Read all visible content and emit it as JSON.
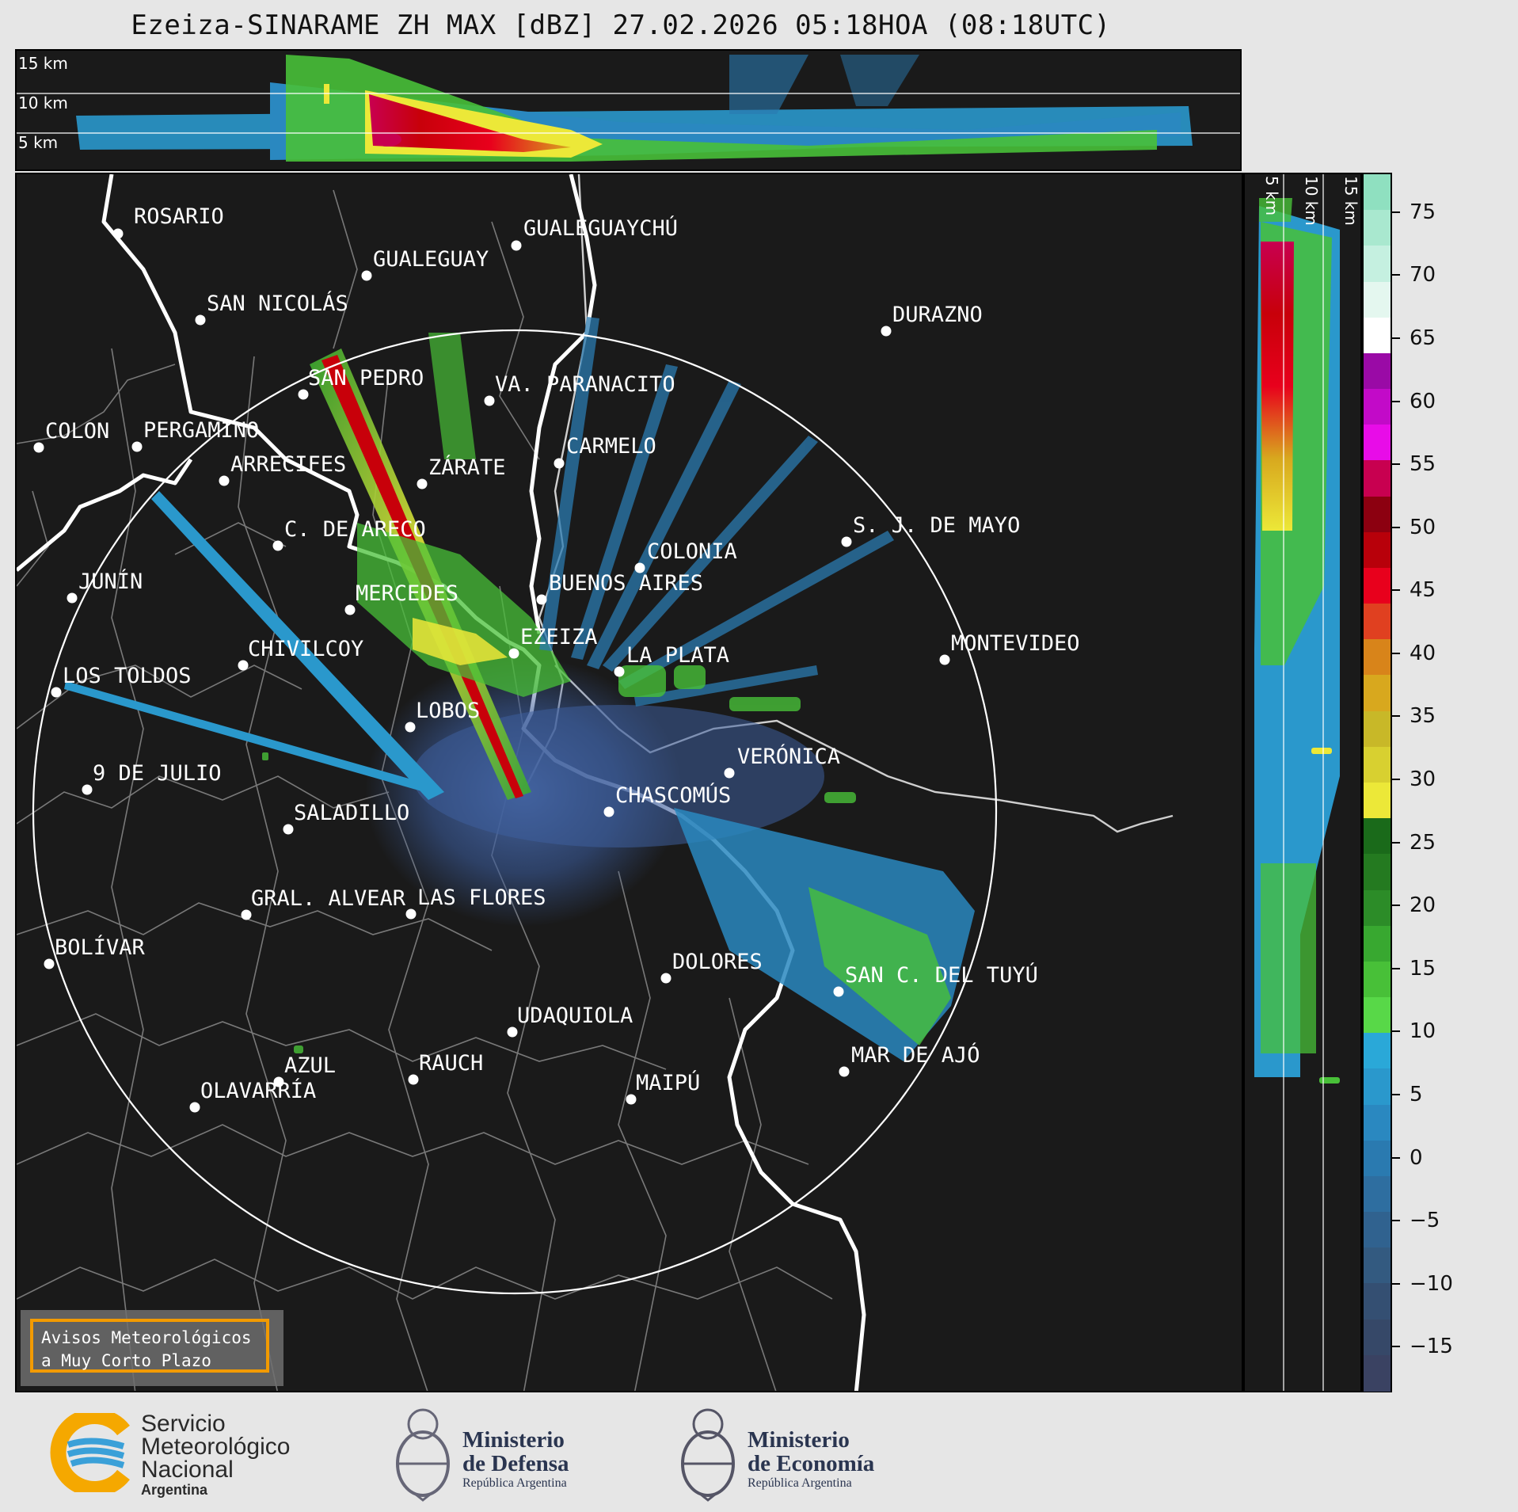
{
  "title": "Ezeiza-SINARAME ZH MAX [dBZ] 27.02.2026 05:18HOA (08:18UTC)",
  "top_profile": {
    "height_labels": [
      "15 km",
      "10 km",
      "5 km"
    ]
  },
  "side_profile": {
    "height_labels": [
      "5 km",
      "10 km",
      "15 km"
    ]
  },
  "colorbar": {
    "unit": "dBZ",
    "ticks": [
      "75",
      "70",
      "65",
      "60",
      "55",
      "50",
      "45",
      "40",
      "35",
      "30",
      "25",
      "20",
      "15",
      "10",
      "5",
      "0",
      "−5",
      "−10",
      "−15"
    ],
    "colors": [
      "#8fe0c0",
      "#a9e8cf",
      "#c5f0e0",
      "#e4f7ef",
      "#ffffff",
      "#9a0aa6",
      "#c20ac8",
      "#e80ce8",
      "#c80050",
      "#8c0010",
      "#b8000a",
      "#e8001c",
      "#e04020",
      "#d8841a",
      "#d8a81e",
      "#c8b828",
      "#d8d030",
      "#ece838",
      "#1a6a1a",
      "#247a20",
      "#2c8c28",
      "#38a830",
      "#48c038",
      "#58d848",
      "#2aa8d8",
      "#2a98cc",
      "#2a88c0",
      "#2a7ab0",
      "#2e6ea0",
      "#30628f",
      "#335a80",
      "#344f72",
      "#364868",
      "#3a4262"
    ]
  },
  "cities": [
    {
      "name": "ROSARIO"
    },
    {
      "name": "GUALEGUAYCHÚ"
    },
    {
      "name": "GUALEGUAY"
    },
    {
      "name": "SAN NICOLÁS"
    },
    {
      "name": "DURAZNO"
    },
    {
      "name": "SAN PEDRO"
    },
    {
      "name": "VA. PARANACITO"
    },
    {
      "name": "COLON"
    },
    {
      "name": "PERGAMINO"
    },
    {
      "name": "CARMELO"
    },
    {
      "name": "ARRECIFES"
    },
    {
      "name": "ZÁRATE"
    },
    {
      "name": "C. DE ARECO"
    },
    {
      "name": "S. J. DE MAYO"
    },
    {
      "name": "COLONIA"
    },
    {
      "name": "JUNÍN"
    },
    {
      "name": "BUENOS AIRES"
    },
    {
      "name": "MERCEDES"
    },
    {
      "name": "EZEIZA"
    },
    {
      "name": "CHIVILCOY"
    },
    {
      "name": "LA PLATA"
    },
    {
      "name": "MONTEVIDEO"
    },
    {
      "name": "LOS TOLDOS"
    },
    {
      "name": "LOBOS"
    },
    {
      "name": "VERÓNICA"
    },
    {
      "name": "9 DE JULIO"
    },
    {
      "name": "CHASCOMÚS"
    },
    {
      "name": "SALADILLO"
    },
    {
      "name": "GRAL. ALVEAR"
    },
    {
      "name": "LAS FLORES"
    },
    {
      "name": "BOLÍVAR"
    },
    {
      "name": "DOLORES"
    },
    {
      "name": "SAN C. DEL TUYÚ"
    },
    {
      "name": "UDAQUIOLA"
    },
    {
      "name": "MAR DE AJÓ"
    },
    {
      "name": "AZUL"
    },
    {
      "name": "RAUCH"
    },
    {
      "name": "OLAVARRÍA"
    },
    {
      "name": "MAIPÚ"
    }
  ],
  "avisos": {
    "line1": "Avisos Meteorológicos",
    "line2": "a Muy Corto Plazo"
  },
  "logos": {
    "smn": {
      "line1": "Servicio",
      "line2": "Meteorológico",
      "line3": "Nacional",
      "line4": "Argentina"
    },
    "defensa": {
      "line1": "Ministerio",
      "line2": "de Defensa",
      "line3": "República Argentina"
    },
    "economia": {
      "line1": "Ministerio",
      "line2": "de Economía",
      "line3": "República Argentina"
    }
  }
}
